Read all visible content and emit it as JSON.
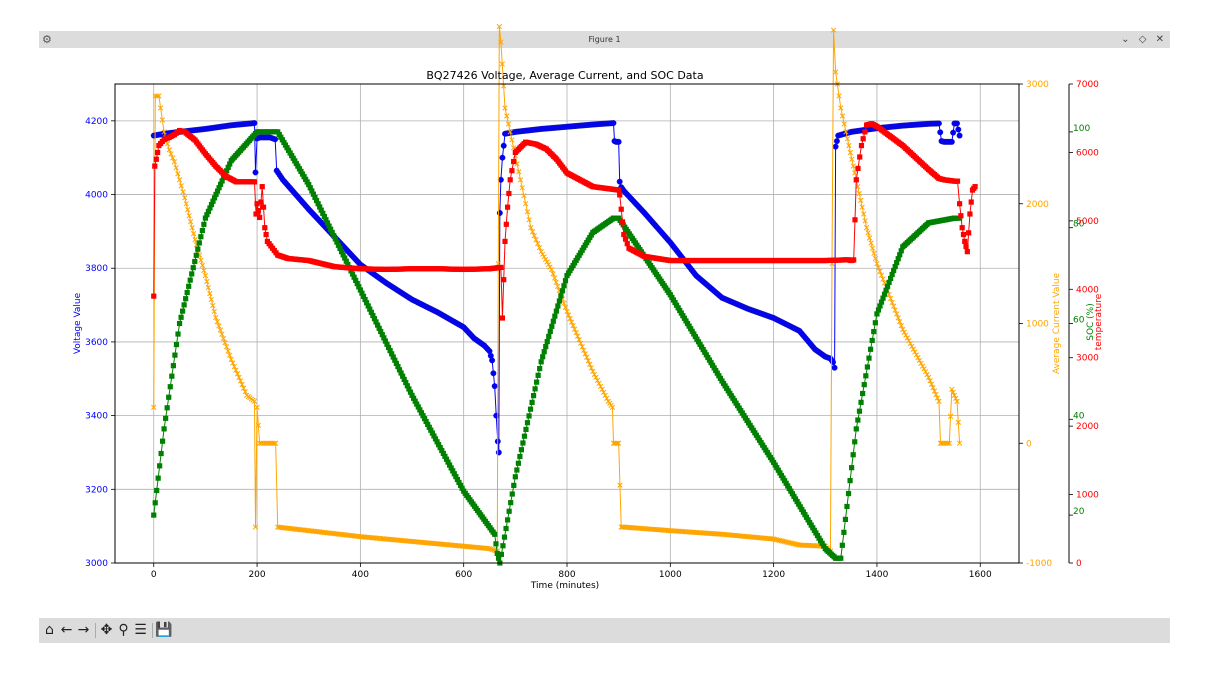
{
  "window": {
    "title": "Figure 1",
    "app_icon": "matplotlib-icon",
    "controls": [
      "minimize-icon",
      "maximize-icon",
      "close-icon"
    ]
  },
  "toolbar": {
    "buttons": [
      "home-icon",
      "back-icon",
      "forward-icon",
      "pan-icon",
      "zoom-icon",
      "configure-subplots-icon",
      "save-icon"
    ]
  },
  "chart_data": {
    "type": "line",
    "title": "BQ27426 Voltage, Average Current, and SOC Data",
    "xlabel": "Time (minutes)",
    "xlim": [
      -75,
      1675
    ],
    "xticks": [
      0,
      200,
      400,
      600,
      800,
      1000,
      1200,
      1400,
      1600
    ],
    "grid": true,
    "axes": [
      {
        "id": "voltage",
        "label": "Voltage Value",
        "side": "left",
        "color": "#0000ff",
        "ylim": [
          3000,
          4300
        ],
        "ticks": [
          3000,
          3200,
          3400,
          3600,
          3800,
          4000,
          4200
        ]
      },
      {
        "id": "current",
        "label": "Average Current Value",
        "side": "right",
        "color": "#ffa500",
        "ylim": [
          -1000,
          3000
        ],
        "ticks": [
          -1000,
          0,
          1000,
          2000,
          3000
        ]
      },
      {
        "id": "soc",
        "label": "SOC (%)",
        "side": "right",
        "color": "#008000",
        "ylim": [
          10,
          110
        ],
        "ticks": [
          20,
          40,
          60,
          80,
          100
        ]
      },
      {
        "id": "temp",
        "label": "temperature",
        "side": "right",
        "color": "#ff0000",
        "ylim": [
          0,
          7000
        ],
        "ticks": [
          0,
          1000,
          2000,
          3000,
          4000,
          5000,
          6000,
          7000
        ]
      }
    ],
    "series": [
      {
        "axis": "voltage",
        "color": "#0000ff",
        "marker": "circle",
        "x": [
          0,
          20,
          50,
          100,
          150,
          195,
          197,
          200,
          205,
          215,
          225,
          235,
          238,
          250,
          300,
          350,
          400,
          450,
          500,
          550,
          600,
          620,
          640,
          650,
          655,
          660,
          663,
          666,
          668,
          670,
          672,
          675,
          680,
          700,
          750,
          800,
          850,
          890,
          892,
          895,
          900,
          902,
          905,
          910,
          950,
          1000,
          1050,
          1100,
          1150,
          1200,
          1250,
          1280,
          1300,
          1310,
          1315,
          1318,
          1320,
          1325,
          1350,
          1400,
          1450,
          1500,
          1520,
          1525,
          1530,
          1545,
          1550,
          1555,
          1560
        ],
        "values": [
          4160,
          4165,
          4170,
          4178,
          4188,
          4194,
          4060,
          4152,
          4155,
          4155,
          4155,
          4150,
          4065,
          4040,
          3960,
          3885,
          3810,
          3760,
          3715,
          3680,
          3640,
          3610,
          3590,
          3575,
          3550,
          3480,
          3400,
          3330,
          3300,
          3950,
          4040,
          4100,
          4165,
          4170,
          4178,
          4184,
          4190,
          4194,
          4145,
          4143,
          4143,
          4035,
          4020,
          4010,
          3950,
          3870,
          3780,
          3720,
          3690,
          3665,
          3630,
          3580,
          3560,
          3555,
          3545,
          3530,
          4130,
          4160,
          4170,
          4180,
          4187,
          4192,
          4193,
          4145,
          4143,
          4143,
          4193,
          4193,
          4160
        ]
      },
      {
        "axis": "current",
        "color": "#ffa500",
        "marker": "x",
        "x": [
          0,
          3,
          10,
          20,
          30,
          40,
          50,
          60,
          80,
          100,
          120,
          150,
          180,
          195,
          197,
          200,
          205,
          230,
          236,
          240,
          300,
          400,
          500,
          600,
          650,
          665,
          667,
          669,
          672,
          680,
          690,
          700,
          710,
          720,
          730,
          740,
          750,
          770,
          800,
          850,
          880,
          888,
          890,
          895,
          900,
          905,
          910,
          1000,
          1100,
          1200,
          1250,
          1300,
          1310,
          1313,
          1316,
          1320,
          1330,
          1340,
          1360,
          1380,
          1400,
          1450,
          1500,
          1520,
          1523,
          1525,
          1540,
          1545,
          1550,
          1555,
          1560
        ],
        "values": [
          300,
          2900,
          2900,
          2600,
          2450,
          2350,
          2200,
          2050,
          1700,
          1400,
          1050,
          700,
          400,
          350,
          -700,
          300,
          0,
          0,
          0,
          -700,
          -730,
          -780,
          -820,
          -860,
          -880,
          -900,
          1500,
          3480,
          3350,
          2800,
          2600,
          2400,
          2200,
          2000,
          1800,
          1700,
          1600,
          1450,
          1100,
          600,
          350,
          300,
          0,
          0,
          0,
          -700,
          -700,
          -730,
          -760,
          -800,
          -850,
          -860,
          -900,
          1500,
          3450,
          3100,
          2800,
          2600,
          2200,
          1800,
          1500,
          950,
          550,
          350,
          0,
          0,
          0,
          450,
          400,
          350,
          0
        ]
      },
      {
        "axis": "soc",
        "color": "#008000",
        "marker": "square",
        "x": [
          0,
          20,
          50,
          100,
          150,
          200,
          240,
          300,
          400,
          500,
          600,
          660,
          665,
          670,
          700,
          750,
          800,
          850,
          890,
          900,
          950,
          1000,
          1100,
          1200,
          1300,
          1320,
          1330,
          1360,
          1400,
          1450,
          1500,
          1550,
          1560
        ],
        "values": [
          20,
          38,
          60,
          82,
          94,
          100,
          100,
          89,
          67,
          45,
          25,
          16,
          12,
          10,
          28,
          52,
          70,
          79,
          82,
          82,
          74,
          66,
          48,
          31,
          13,
          11,
          11,
          38,
          62,
          76,
          81,
          82,
          82
        ]
      },
      {
        "axis": "temp",
        "color": "#ff0000",
        "marker": "square",
        "x": [
          0,
          2,
          5,
          10,
          20,
          30,
          40,
          50,
          60,
          80,
          100,
          120,
          140,
          160,
          180,
          195,
          198,
          200,
          205,
          210,
          215,
          220,
          230,
          240,
          260,
          300,
          350,
          400,
          450,
          500,
          550,
          600,
          650,
          672,
          675,
          680,
          685,
          690,
          700,
          720,
          740,
          760,
          780,
          800,
          850,
          900,
          902,
          905,
          910,
          920,
          950,
          1000,
          1100,
          1200,
          1300,
          1340,
          1345,
          1350,
          1355,
          1360,
          1370,
          1380,
          1390,
          1400,
          1450,
          1500,
          1520,
          1530,
          1550,
          1556,
          1560,
          1565,
          1570,
          1575,
          1580,
          1585,
          1590
        ],
        "values": [
          3900,
          5800,
          5900,
          6100,
          6190,
          6220,
          6260,
          6320,
          6300,
          6180,
          5980,
          5800,
          5650,
          5570,
          5570,
          5570,
          5100,
          5250,
          5050,
          5500,
          4900,
          4700,
          4600,
          4500,
          4450,
          4420,
          4330,
          4300,
          4290,
          4300,
          4300,
          4290,
          4300,
          4320,
          3580,
          4700,
          5200,
          5600,
          6000,
          6150,
          6120,
          6050,
          5900,
          5700,
          5500,
          5450,
          5380,
          5170,
          4800,
          4600,
          4480,
          4420,
          4420,
          4420,
          4420,
          4430,
          4430,
          4420,
          4430,
          5600,
          6100,
          6400,
          6420,
          6380,
          6100,
          5750,
          5620,
          5600,
          5580,
          5580,
          5250,
          4900,
          4700,
          4550,
          5100,
          5450,
          5500
        ]
      }
    ]
  }
}
